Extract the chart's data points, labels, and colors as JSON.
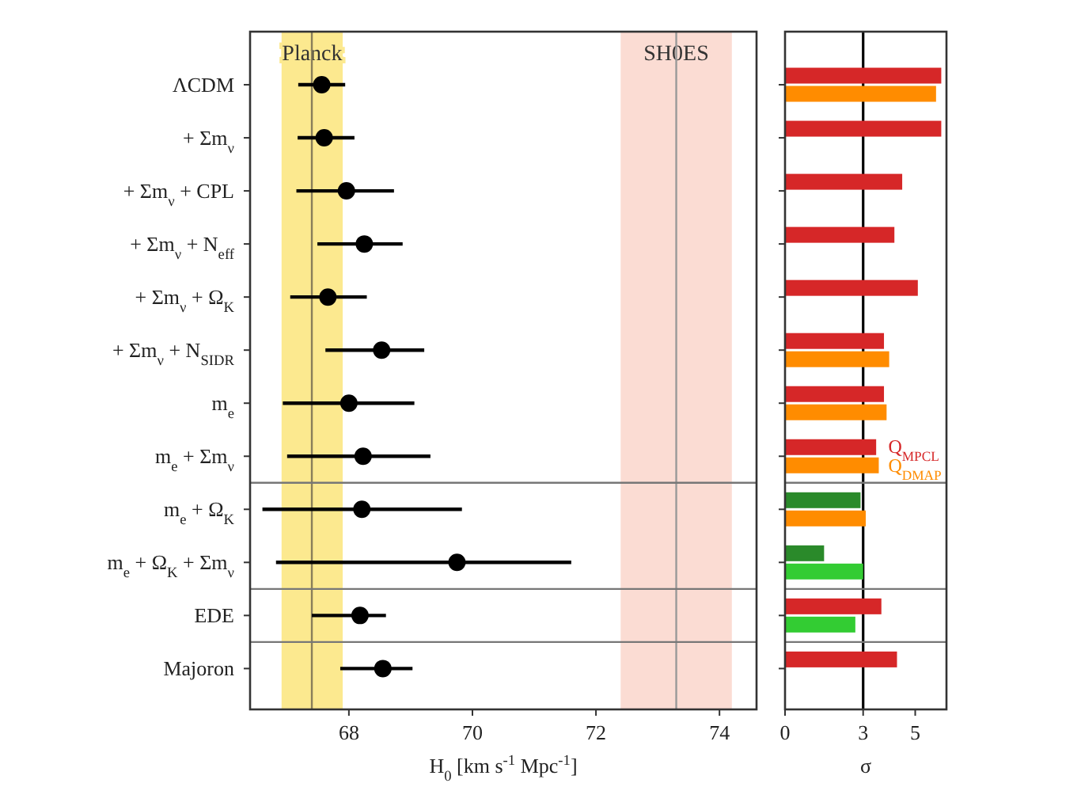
{
  "chart_data": [
    {
      "type": "scatter",
      "orientation": "horizontal",
      "categories": [
        "ΛCDM",
        "+ Σm$_{ν}$",
        "+ Σm$_{ν}$ + CPL",
        "+ Σm$_{ν}$ + N$_{eff}$",
        "+ Σm$_{ν}$ + Ω$_{K}$",
        "+ Σm$_{ν}$ + N$_{SIDR}$",
        "m$_{e}$",
        "m$_{e}$ + Σm$_{ν}$",
        "m$_{e}$ + Ω$_{K}$",
        "m$_{e}$ + Ω$_{K}$ + Σm$_{ν}$",
        "EDE",
        "Majoron"
      ],
      "values": [
        67.56,
        67.6,
        67.96,
        68.25,
        67.66,
        68.53,
        68.0,
        68.23,
        68.21,
        69.75,
        68.18,
        68.55
      ],
      "errors": [
        [
          67.18,
          67.94
        ],
        [
          67.17,
          68.09
        ],
        [
          67.15,
          68.73
        ],
        [
          67.49,
          68.87
        ],
        [
          67.05,
          68.29
        ],
        [
          67.62,
          69.22
        ],
        [
          66.93,
          69.06
        ],
        [
          67.0,
          69.32
        ],
        [
          66.6,
          69.83
        ],
        [
          66.82,
          71.6
        ],
        [
          67.4,
          68.6
        ],
        [
          67.86,
          69.03
        ]
      ],
      "color": "#000000",
      "marker": "circle",
      "xlabel": "H$_{0}$ [km s$^{-1}$ Mpc$^{-1}$]",
      "xlim": [
        66.4,
        74.6
      ],
      "xticks": [
        68,
        70,
        72,
        74
      ],
      "bands": [
        {
          "axis": "x",
          "from": 66.91,
          "to": 67.9,
          "label": "Planck",
          "color": "#fce98f"
        },
        {
          "axis": "x",
          "from": 72.4,
          "to": 74.2,
          "label": "SH0ES",
          "color": "#fbdcd3"
        }
      ],
      "ref_lines": [
        {
          "axis": "x",
          "value": 67.4,
          "color": "#8a7f5a"
        },
        {
          "axis": "x",
          "value": 73.3,
          "color": "#999999"
        }
      ]
    },
    {
      "type": "bar",
      "orientation": "horizontal",
      "categories": [
        null,
        null,
        null,
        null,
        null,
        null,
        null,
        null,
        null,
        null,
        null,
        null
      ],
      "tick_labels": "x",
      "legend": "right",
      "series": [
        {
          "name": "Q$_{MPCL}$",
          "color": "#d62728",
          "colors": [
            "#d62728",
            "#d62728",
            "#d62728",
            "#d62728",
            "#d62728",
            "#d62728",
            "#d62728",
            "#d62728",
            "#2a8a2a",
            "#2a8a2a",
            "#d62728",
            "#d62728"
          ],
          "values": [
            6.0,
            6.0,
            4.5,
            4.2,
            5.1,
            3.8,
            3.8,
            3.5,
            2.9,
            1.5,
            3.7,
            4.3
          ]
        },
        {
          "name": "Q$_{DMAP}$",
          "color": "#ff8c00",
          "colors": [
            "#ff8c00",
            null,
            null,
            null,
            null,
            "#ff8c00",
            "#ff8c00",
            "#ff8c00",
            "#ff8c00",
            "#33cc33",
            "#33cc33",
            null
          ],
          "values": [
            5.8,
            null,
            null,
            null,
            null,
            4.0,
            3.9,
            3.6,
            3.1,
            3.0,
            2.7,
            null
          ]
        }
      ],
      "xlabel": "σ",
      "xlim": [
        0,
        6.2
      ],
      "xticks": [
        0,
        3,
        5
      ],
      "ref_lines": [
        {
          "axis": "x",
          "value": 3,
          "color": "#000000"
        }
      ]
    }
  ]
}
